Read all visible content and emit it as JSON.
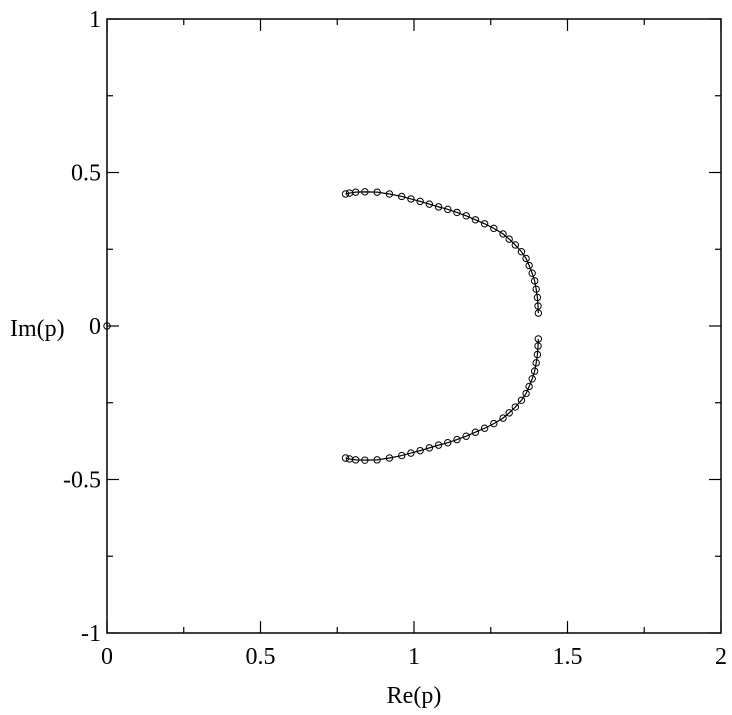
{
  "chart_data": {
    "type": "scatter",
    "title": "",
    "xlabel": "Re(p)",
    "ylabel": "Im(p)",
    "xlim": [
      0,
      2
    ],
    "ylim": [
      -1,
      1
    ],
    "grid": false,
    "x_ticks": [
      {
        "value": 0,
        "label": "0"
      },
      {
        "value": 0.5,
        "label": "0.5"
      },
      {
        "value": 1,
        "label": "1"
      },
      {
        "value": 1.5,
        "label": "1.5"
      },
      {
        "value": 2,
        "label": "2"
      }
    ],
    "y_ticks": [
      {
        "value": -1,
        "label": "-1"
      },
      {
        "value": -0.5,
        "label": "-0.5"
      },
      {
        "value": 0,
        "label": "0"
      },
      {
        "value": 0.5,
        "label": "0.5"
      },
      {
        "value": 1,
        "label": "1"
      }
    ],
    "series": [
      {
        "x": [
          0.777,
          0.79,
          0.81,
          0.84,
          0.88,
          0.92,
          0.96,
          0.99,
          1.02,
          1.05,
          1.08,
          1.11,
          1.14,
          1.17,
          1.2,
          1.23,
          1.26,
          1.29,
          1.31,
          1.33,
          1.35,
          1.365,
          1.375,
          1.385,
          1.393,
          1.398,
          1.402,
          1.404,
          1.405
        ],
        "y": [
          0.43,
          0.433,
          0.436,
          0.437,
          0.436,
          0.43,
          0.422,
          0.414,
          0.406,
          0.397,
          0.388,
          0.38,
          0.37,
          0.359,
          0.346,
          0.333,
          0.318,
          0.3,
          0.283,
          0.264,
          0.242,
          0.22,
          0.197,
          0.172,
          0.147,
          0.12,
          0.093,
          0.065,
          0.042
        ]
      },
      {
        "x": [
          0.777,
          0.79,
          0.81,
          0.84,
          0.88,
          0.92,
          0.96,
          0.99,
          1.02,
          1.05,
          1.08,
          1.11,
          1.14,
          1.17,
          1.2,
          1.23,
          1.26,
          1.29,
          1.31,
          1.33,
          1.35,
          1.365,
          1.375,
          1.385,
          1.393,
          1.398,
          1.402,
          1.404,
          1.405
        ],
        "y": [
          -0.43,
          -0.433,
          -0.436,
          -0.437,
          -0.436,
          -0.43,
          -0.422,
          -0.414,
          -0.406,
          -0.397,
          -0.388,
          -0.38,
          -0.37,
          -0.359,
          -0.346,
          -0.333,
          -0.318,
          -0.3,
          -0.283,
          -0.264,
          -0.242,
          -0.22,
          -0.197,
          -0.172,
          -0.147,
          -0.12,
          -0.093,
          -0.065,
          -0.042
        ]
      },
      {
        "x": [
          0.0
        ],
        "y": [
          0.0
        ]
      }
    ]
  }
}
